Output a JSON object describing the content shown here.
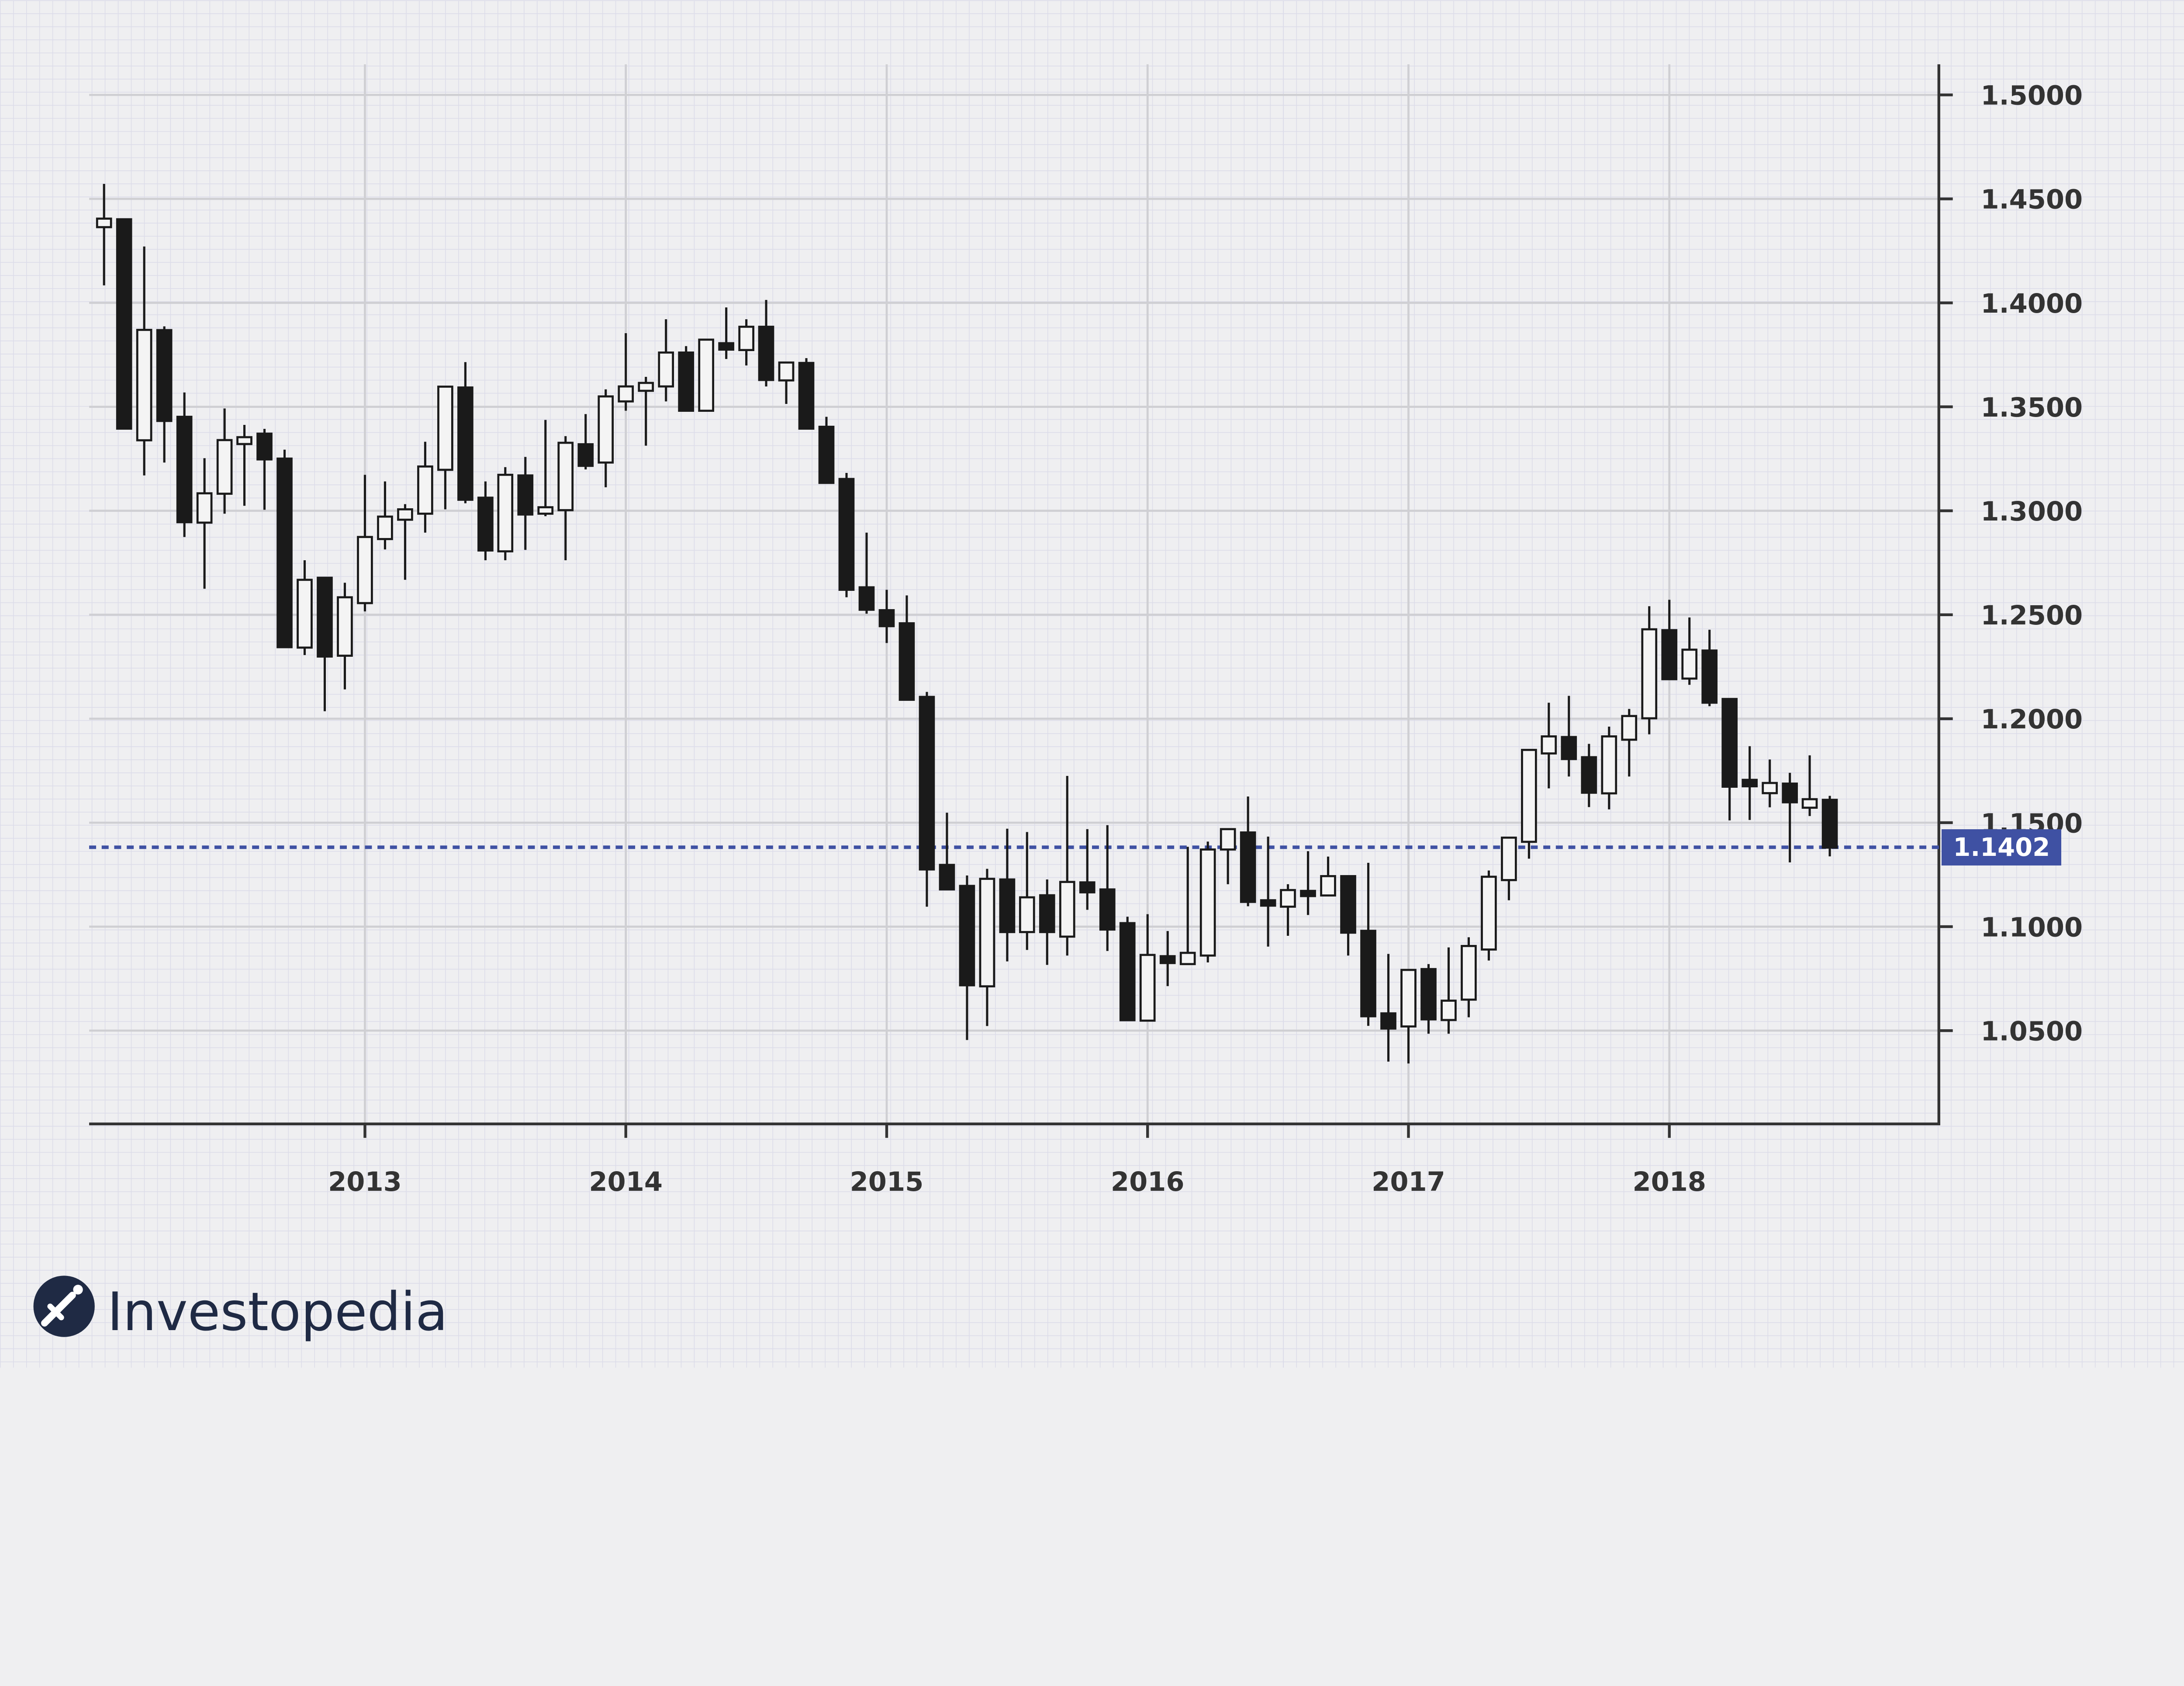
{
  "chart_data": {
    "type": "candlestick",
    "title": "",
    "xlabel": "",
    "ylabel": "",
    "x_ticks": [
      "2013",
      "2014",
      "2015",
      "2016",
      "2017",
      "2018"
    ],
    "y_ticks": [
      "1.5000",
      "1.4500",
      "1.4000",
      "1.3500",
      "1.3000",
      "1.2500",
      "1.2000",
      "1.1500",
      "1.1000",
      "1.0500"
    ],
    "ylim": [
      1.005,
      1.515
    ],
    "xlim": [
      2011.94,
      2019.03
    ],
    "y_axis_side": "right",
    "grid": true,
    "colors": {
      "up_fill": "#f4f4f4",
      "down_fill": "#1a1a1a",
      "outline": "#1a1a1a",
      "current_price": "#3f51a3",
      "background": "#efeff1"
    },
    "current_price": {
      "value": 1.1402,
      "label": "1.1402",
      "line_style": "dotted"
    },
    "candles": [
      {
        "t": 2012.0,
        "o": 1.4364,
        "h": 1.4572,
        "l": 1.4084,
        "c": 1.4405
      },
      {
        "t": 2012.077,
        "o": 1.4402,
        "h": 1.4402,
        "l": 1.3395,
        "c": 1.3395
      },
      {
        "t": 2012.154,
        "o": 1.3339,
        "h": 1.4271,
        "l": 1.317,
        "c": 1.387
      },
      {
        "t": 2012.231,
        "o": 1.3869,
        "h": 1.3887,
        "l": 1.3232,
        "c": 1.3432
      },
      {
        "t": 2012.308,
        "o": 1.3452,
        "h": 1.3569,
        "l": 1.2874,
        "c": 1.2945
      },
      {
        "t": 2012.385,
        "o": 1.2943,
        "h": 1.3253,
        "l": 1.2625,
        "c": 1.3084
      },
      {
        "t": 2012.462,
        "o": 1.3082,
        "h": 1.3492,
        "l": 1.2986,
        "c": 1.334
      },
      {
        "t": 2012.538,
        "o": 1.3321,
        "h": 1.3413,
        "l": 1.3024,
        "c": 1.3354
      },
      {
        "t": 2012.615,
        "o": 1.3371,
        "h": 1.3394,
        "l": 1.3005,
        "c": 1.3247
      },
      {
        "t": 2012.692,
        "o": 1.3251,
        "h": 1.3294,
        "l": 1.2344,
        "c": 1.2344
      },
      {
        "t": 2012.769,
        "o": 1.2342,
        "h": 1.2762,
        "l": 1.2306,
        "c": 1.2668
      },
      {
        "t": 2012.846,
        "o": 1.2678,
        "h": 1.2678,
        "l": 1.2036,
        "c": 1.2299
      },
      {
        "t": 2012.923,
        "o": 1.2303,
        "h": 1.2654,
        "l": 1.2141,
        "c": 1.2584
      },
      {
        "t": 2013.0,
        "o": 1.2556,
        "h": 1.3173,
        "l": 1.2516,
        "c": 1.2874
      },
      {
        "t": 2013.077,
        "o": 1.2864,
        "h": 1.3141,
        "l": 1.2814,
        "c": 1.2972
      },
      {
        "t": 2013.154,
        "o": 1.2957,
        "h": 1.3032,
        "l": 1.2668,
        "c": 1.3007
      },
      {
        "t": 2013.231,
        "o": 1.2986,
        "h": 1.3332,
        "l": 1.2895,
        "c": 1.3213
      },
      {
        "t": 2013.308,
        "o": 1.3197,
        "h": 1.3597,
        "l": 1.3007,
        "c": 1.3597
      },
      {
        "t": 2013.385,
        "o": 1.3593,
        "h": 1.3715,
        "l": 1.3036,
        "c": 1.3053
      },
      {
        "t": 2013.462,
        "o": 1.3063,
        "h": 1.3141,
        "l": 1.2762,
        "c": 1.2809
      },
      {
        "t": 2013.538,
        "o": 1.2805,
        "h": 1.321,
        "l": 1.2762,
        "c": 1.3173
      },
      {
        "t": 2013.615,
        "o": 1.317,
        "h": 1.3259,
        "l": 1.2812,
        "c": 1.2982
      },
      {
        "t": 2013.692,
        "o": 1.2986,
        "h": 1.3437,
        "l": 1.2974,
        "c": 1.3017
      },
      {
        "t": 2013.769,
        "o": 1.3003,
        "h": 1.3359,
        "l": 1.2762,
        "c": 1.3327
      },
      {
        "t": 2013.846,
        "o": 1.332,
        "h": 1.3465,
        "l": 1.3199,
        "c": 1.3216
      },
      {
        "t": 2013.923,
        "o": 1.3232,
        "h": 1.3584,
        "l": 1.3113,
        "c": 1.355
      },
      {
        "t": 2014.0,
        "o": 1.3526,
        "h": 1.3854,
        "l": 1.3481,
        "c": 1.3598
      },
      {
        "t": 2014.077,
        "o": 1.3577,
        "h": 1.3644,
        "l": 1.3313,
        "c": 1.3615
      },
      {
        "t": 2014.154,
        "o": 1.3598,
        "h": 1.3921,
        "l": 1.3526,
        "c": 1.3761
      },
      {
        "t": 2014.231,
        "o": 1.3761,
        "h": 1.3792,
        "l": 1.3481,
        "c": 1.3481
      },
      {
        "t": 2014.308,
        "o": 1.3481,
        "h": 1.3823,
        "l": 1.3481,
        "c": 1.3823
      },
      {
        "t": 2014.385,
        "o": 1.3806,
        "h": 1.3978,
        "l": 1.373,
        "c": 1.3775
      },
      {
        "t": 2014.462,
        "o": 1.3773,
        "h": 1.3921,
        "l": 1.3699,
        "c": 1.3885
      },
      {
        "t": 2014.538,
        "o": 1.3885,
        "h": 1.4014,
        "l": 1.3598,
        "c": 1.3629
      },
      {
        "t": 2014.615,
        "o": 1.3627,
        "h": 1.3713,
        "l": 1.3514,
        "c": 1.3713
      },
      {
        "t": 2014.692,
        "o": 1.3711,
        "h": 1.3734,
        "l": 1.3395,
        "c": 1.3395
      },
      {
        "t": 2014.769,
        "o": 1.3404,
        "h": 1.3452,
        "l": 1.3134,
        "c": 1.3134
      },
      {
        "t": 2014.846,
        "o": 1.3153,
        "h": 1.3182,
        "l": 1.2584,
        "c": 1.262
      },
      {
        "t": 2014.923,
        "o": 1.2632,
        "h": 1.2895,
        "l": 1.2505,
        "c": 1.2524
      },
      {
        "t": 2015.0,
        "o": 1.2522,
        "h": 1.262,
        "l": 1.2364,
        "c": 1.2445
      },
      {
        "t": 2015.077,
        "o": 1.2459,
        "h": 1.2593,
        "l": 1.2091,
        "c": 1.2091
      },
      {
        "t": 2015.154,
        "o": 1.2105,
        "h": 1.2129,
        "l": 1.1096,
        "c": 1.1275
      },
      {
        "t": 2015.231,
        "o": 1.1297,
        "h": 1.1548,
        "l": 1.1179,
        "c": 1.1179
      },
      {
        "t": 2015.308,
        "o": 1.1196,
        "h": 1.1246,
        "l": 1.0455,
        "c": 1.0718
      },
      {
        "t": 2015.385,
        "o": 1.0713,
        "h": 1.1278,
        "l": 1.0522,
        "c": 1.123
      },
      {
        "t": 2015.462,
        "o": 1.1227,
        "h": 1.1471,
        "l": 1.0833,
        "c": 1.0974
      },
      {
        "t": 2015.538,
        "o": 1.0974,
        "h": 1.1455,
        "l": 1.0888,
        "c": 1.1141
      },
      {
        "t": 2015.615,
        "o": 1.1151,
        "h": 1.1227,
        "l": 1.0816,
        "c": 1.0974
      },
      {
        "t": 2015.692,
        "o": 1.0952,
        "h": 1.1725,
        "l": 1.0861,
        "c": 1.1215
      },
      {
        "t": 2015.769,
        "o": 1.1213,
        "h": 1.1469,
        "l": 1.1081,
        "c": 1.1165
      },
      {
        "t": 2015.846,
        "o": 1.1179,
        "h": 1.1488,
        "l": 1.0883,
        "c": 1.0986
      },
      {
        "t": 2015.923,
        "o": 1.1017,
        "h": 1.1048,
        "l": 1.055,
        "c": 1.055
      },
      {
        "t": 2016.0,
        "o": 1.0548,
        "h": 1.106,
        "l": 1.0548,
        "c": 1.0864
      },
      {
        "t": 2016.077,
        "o": 1.0858,
        "h": 1.0979,
        "l": 1.0714,
        "c": 1.0825
      },
      {
        "t": 2016.154,
        "o": 1.082,
        "h": 1.1384,
        "l": 1.082,
        "c": 1.0874
      },
      {
        "t": 2016.231,
        "o": 1.0861,
        "h": 1.1409,
        "l": 1.0828,
        "c": 1.1371
      },
      {
        "t": 2016.308,
        "o": 1.1371,
        "h": 1.1469,
        "l": 1.1204,
        "c": 1.1469
      },
      {
        "t": 2016.385,
        "o": 1.1453,
        "h": 1.1626,
        "l": 1.1098,
        "c": 1.1119
      },
      {
        "t": 2016.462,
        "o": 1.1127,
        "h": 1.1433,
        "l": 1.0904,
        "c": 1.1101
      },
      {
        "t": 2016.538,
        "o": 1.1096,
        "h": 1.1204,
        "l": 1.0956,
        "c": 1.1176
      },
      {
        "t": 2016.615,
        "o": 1.1172,
        "h": 1.1363,
        "l": 1.1056,
        "c": 1.1147
      },
      {
        "t": 2016.692,
        "o": 1.115,
        "h": 1.1337,
        "l": 1.115,
        "c": 1.1243
      },
      {
        "t": 2016.769,
        "o": 1.1243,
        "h": 1.1243,
        "l": 1.0861,
        "c": 1.0971
      },
      {
        "t": 2016.846,
        "o": 1.098,
        "h": 1.1307,
        "l": 1.0523,
        "c": 1.0569
      },
      {
        "t": 2016.923,
        "o": 1.0583,
        "h": 1.0869,
        "l": 1.0351,
        "c": 1.051
      },
      {
        "t": 2017.0,
        "o": 1.052,
        "h": 1.0792,
        "l": 1.0342,
        "c": 1.0792
      },
      {
        "t": 2017.077,
        "o": 1.0796,
        "h": 1.082,
        "l": 1.0485,
        "c": 1.0554
      },
      {
        "t": 2017.154,
        "o": 1.0551,
        "h": 1.09,
        "l": 1.0485,
        "c": 1.0644
      },
      {
        "t": 2017.231,
        "o": 1.0649,
        "h": 1.0949,
        "l": 1.0564,
        "c": 1.0907
      },
      {
        "t": 2017.308,
        "o": 1.089,
        "h": 1.127,
        "l": 1.0837,
        "c": 1.124
      },
      {
        "t": 2017.385,
        "o": 1.1224,
        "h": 1.1428,
        "l": 1.1127,
        "c": 1.1428
      },
      {
        "t": 2017.462,
        "o": 1.1408,
        "h": 1.185,
        "l": 1.1327,
        "c": 1.185
      },
      {
        "t": 2017.538,
        "o": 1.1833,
        "h": 1.2077,
        "l": 1.1665,
        "c": 1.1915
      },
      {
        "t": 2017.615,
        "o": 1.1912,
        "h": 1.211,
        "l": 1.1722,
        "c": 1.1806
      },
      {
        "t": 2017.692,
        "o": 1.1815,
        "h": 1.1879,
        "l": 1.1575,
        "c": 1.1644
      },
      {
        "t": 2017.769,
        "o": 1.1641,
        "h": 1.1962,
        "l": 1.1564,
        "c": 1.1915
      },
      {
        "t": 2017.846,
        "o": 1.1899,
        "h": 1.2047,
        "l": 1.1722,
        "c": 1.2013
      },
      {
        "t": 2017.923,
        "o": 1.2002,
        "h": 1.2541,
        "l": 1.1925,
        "c": 1.243
      },
      {
        "t": 2018.0,
        "o": 1.2426,
        "h": 1.2572,
        "l": 1.219,
        "c": 1.219
      },
      {
        "t": 2018.077,
        "o": 1.2193,
        "h": 1.2487,
        "l": 1.2163,
        "c": 1.2332
      },
      {
        "t": 2018.154,
        "o": 1.2328,
        "h": 1.2428,
        "l": 1.206,
        "c": 1.2077
      },
      {
        "t": 2018.231,
        "o": 1.2095,
        "h": 1.2095,
        "l": 1.1511,
        "c": 1.1673
      },
      {
        "t": 2018.308,
        "o": 1.1706,
        "h": 1.1868,
        "l": 1.1513,
        "c": 1.1675
      },
      {
        "t": 2018.385,
        "o": 1.1642,
        "h": 1.1804,
        "l": 1.1574,
        "c": 1.1691
      },
      {
        "t": 2018.462,
        "o": 1.1688,
        "h": 1.174,
        "l": 1.1309,
        "c": 1.1598
      },
      {
        "t": 2018.538,
        "o": 1.1572,
        "h": 1.1824,
        "l": 1.1532,
        "c": 1.1613
      },
      {
        "t": 2018.615,
        "o": 1.161,
        "h": 1.1629,
        "l": 1.1338,
        "c": 1.138
      }
    ]
  },
  "branding": {
    "name": "Investopedia",
    "logo_icon": "investopedia-logo-icon"
  }
}
